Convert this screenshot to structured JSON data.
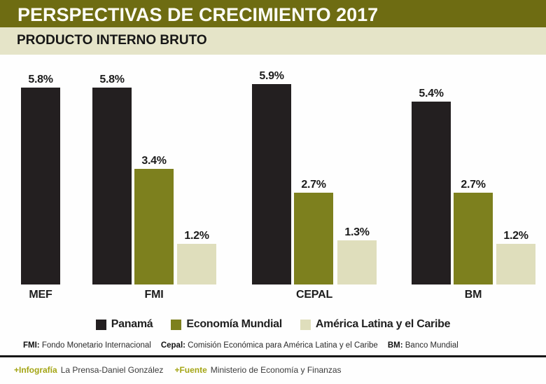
{
  "header": {
    "title": "PERSPECTIVAS DE CRECIMIENTO 2017",
    "subtitle": "PRODUCTO INTERNO BRUTO"
  },
  "chart_data": {
    "type": "bar",
    "title": "PRODUCTO INTERNO BRUTO",
    "unit": "%",
    "categories": [
      "MEF",
      "FMI",
      "CEPAL",
      "BM"
    ],
    "series": [
      {
        "name": "Panamá",
        "color": "#231f20",
        "values": [
          5.8,
          5.8,
          5.9,
          5.4
        ]
      },
      {
        "name": "Economía Mundial",
        "color": "#7d801e",
        "values": [
          null,
          3.4,
          2.7,
          2.7
        ]
      },
      {
        "name": "América Latina y el Caribe",
        "color": "#dfdebc",
        "values": [
          null,
          1.2,
          1.3,
          1.2
        ]
      }
    ],
    "value_label_format": "one-decimal-percent",
    "ylim": [
      0,
      6.5
    ],
    "grid": false,
    "legend_position": "bottom"
  },
  "footnotes": {
    "definitions": [
      {
        "abbr": "FMI:",
        "text": "Fondo Monetario Internacional"
      },
      {
        "abbr": "Cepal:",
        "text": "Comisión Económica para América Latina y el Caribe"
      },
      {
        "abbr": "BM:",
        "text": "Banco Mundial"
      }
    ]
  },
  "credits": {
    "infografia_label": "+Infografía",
    "infografia_text": "La Prensa-Daniel González",
    "fuente_label": "+Fuente",
    "fuente_text": "Ministerio de Economía y Finanzas"
  },
  "colors": {
    "header_bg": "#6e6c12",
    "subtitle_bg": "#e5e4c8",
    "panama_bar": "#231f20",
    "economia_bar": "#7d801e",
    "america_bar": "#dfdebc",
    "accent_text": "#a4a514"
  }
}
